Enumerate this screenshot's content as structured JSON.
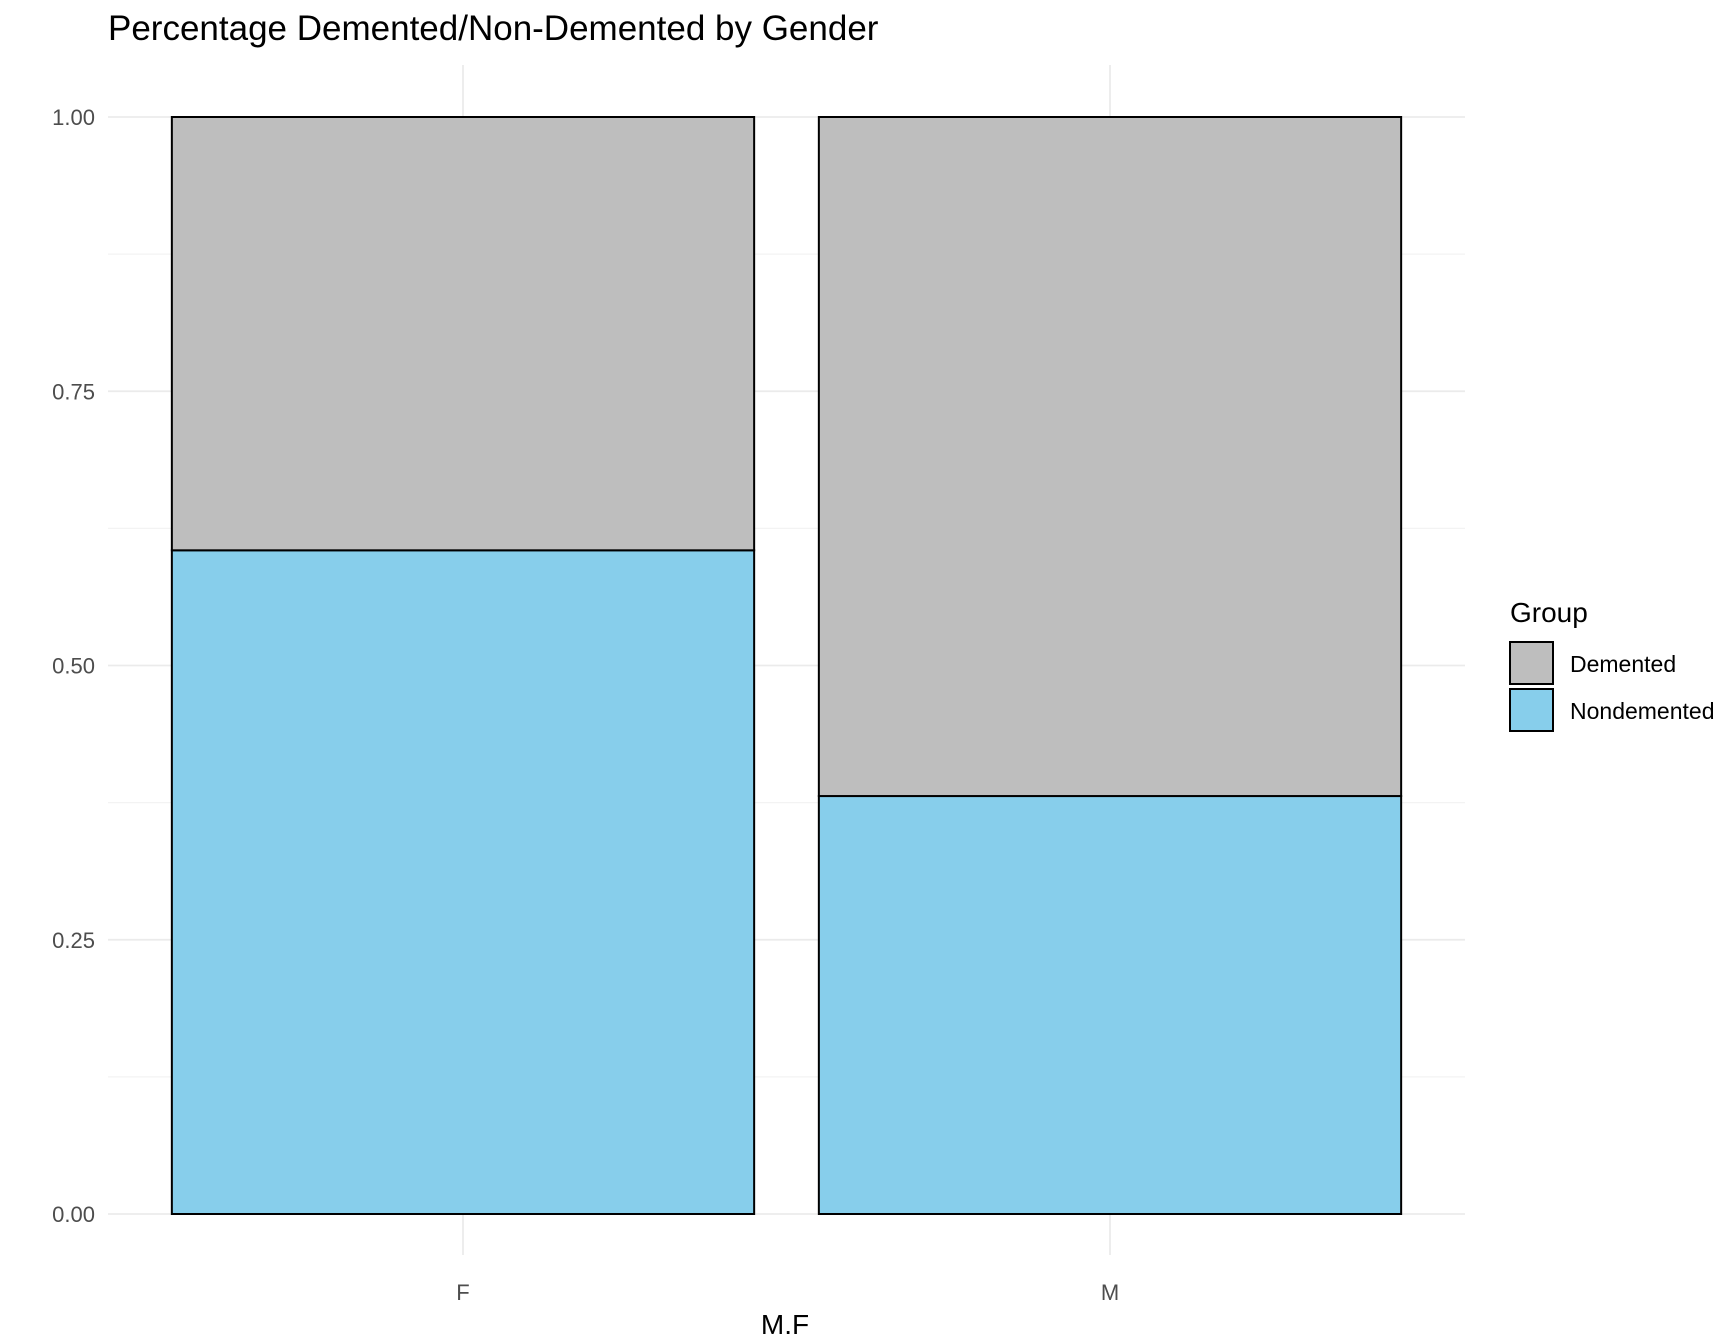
{
  "chart_data": {
    "type": "bar",
    "stacked": true,
    "title": "Percentage Demented/Non-Demented by Gender",
    "xlabel": "M.F",
    "ylabel": "",
    "categories": [
      "F",
      "M"
    ],
    "series": [
      {
        "name": "Nondemented",
        "color": "#87CEEB",
        "values": [
          0.605,
          0.381
        ]
      },
      {
        "name": "Demented",
        "color": "#BEBEBE",
        "values": [
          0.395,
          0.619
        ]
      }
    ],
    "ylim": [
      0,
      1
    ],
    "yticks": [
      "0.00",
      "0.25",
      "0.50",
      "0.75",
      "1.00"
    ],
    "grid": true,
    "legend": {
      "title": "Group",
      "position": "right",
      "items": [
        {
          "label": "Demented",
          "color": "#BEBEBE"
        },
        {
          "label": "Nondemented",
          "color": "#87CEEB"
        }
      ]
    }
  }
}
